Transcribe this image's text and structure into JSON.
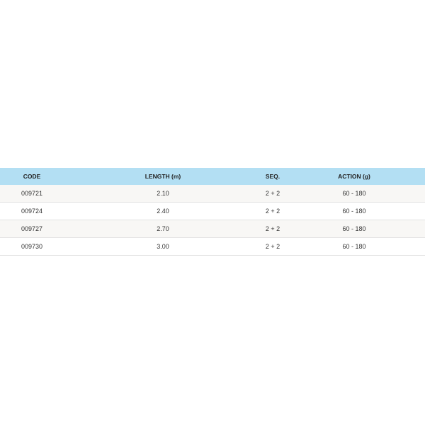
{
  "table": {
    "headers": [
      "CODE",
      "LENGTH (m)",
      "SEQ.",
      "ACTION (g)"
    ],
    "rows": [
      [
        "009721",
        "2.10",
        "2 + 2",
        "60 - 180"
      ],
      [
        "009724",
        "2.40",
        "2 + 2",
        "60 - 180"
      ],
      [
        "009727",
        "2.70",
        "2 + 2",
        "60 - 180"
      ],
      [
        "009730",
        "3.00",
        "2 + 2",
        "60 - 180"
      ]
    ]
  },
  "colors": {
    "header_bg": "#b3dff3",
    "row_alt_bg": "#f8f7f5"
  }
}
